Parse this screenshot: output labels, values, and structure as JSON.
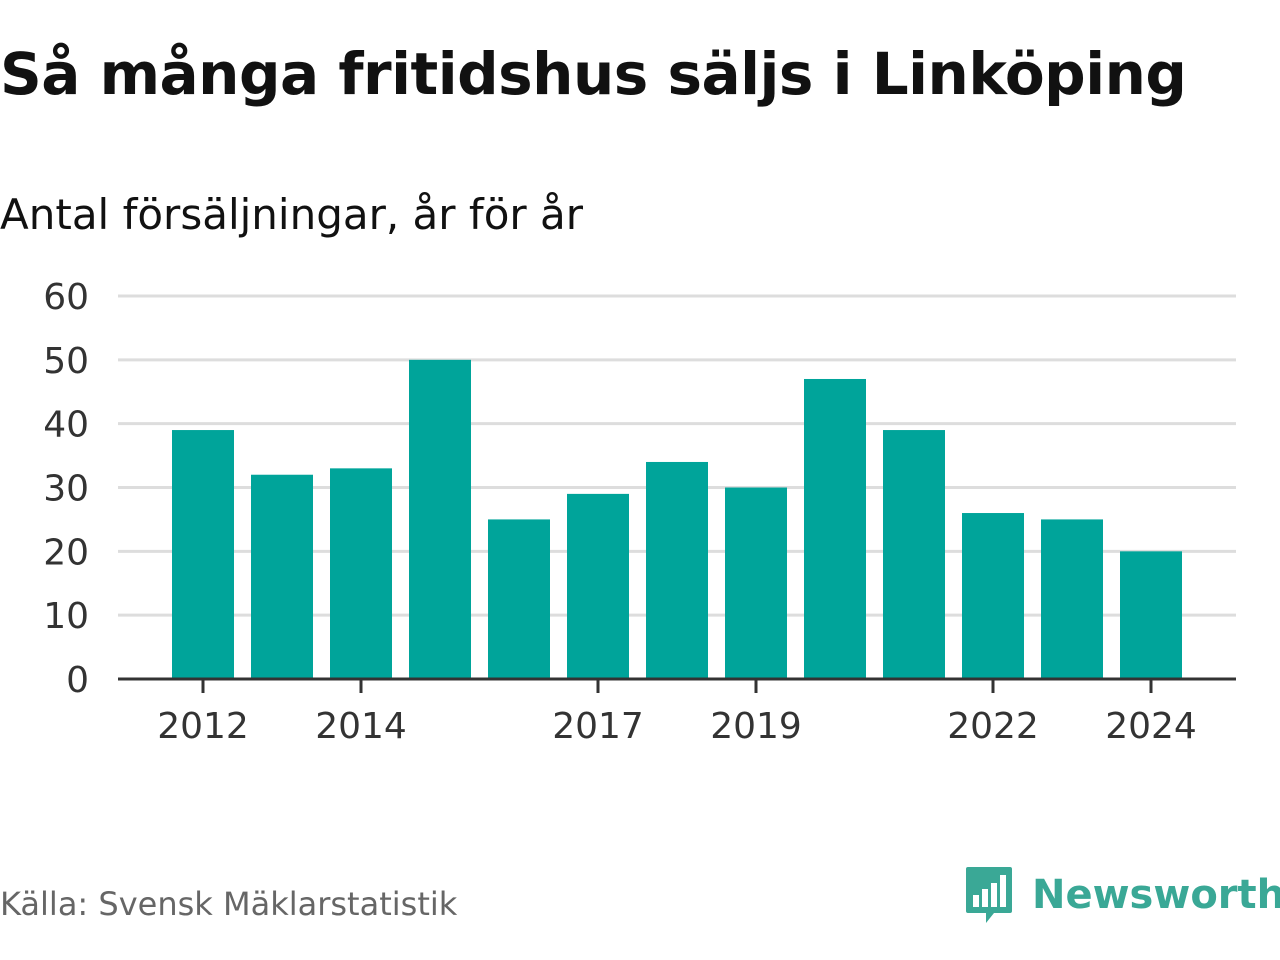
{
  "header": {
    "title": "Så många fritidshus säljs i Linköping",
    "subtitle": "Antal försäljningar, år för år"
  },
  "footer": {
    "source": "Källa: Svensk Mäklarstatistik",
    "logo_text": "Newsworthy"
  },
  "colors": {
    "bar": "#00a49a",
    "grid": "#dddddd",
    "axis": "#333333",
    "logo": "#3aa896"
  },
  "chart_data": {
    "type": "bar",
    "categories": [
      "2012",
      "2013",
      "2014",
      "2015",
      "2016",
      "2017",
      "2018",
      "2019",
      "2020",
      "2021",
      "2022",
      "2023",
      "2024"
    ],
    "values": [
      39,
      32,
      33,
      50,
      25,
      29,
      34,
      30,
      47,
      39,
      26,
      25,
      20
    ],
    "x_tick_labels": [
      "2012",
      "2014",
      "2017",
      "2019",
      "2022",
      "2024"
    ],
    "y_ticks": [
      0,
      10,
      20,
      30,
      40,
      50,
      60
    ],
    "ylim": [
      0,
      60
    ],
    "grid": true,
    "legend": "none"
  }
}
